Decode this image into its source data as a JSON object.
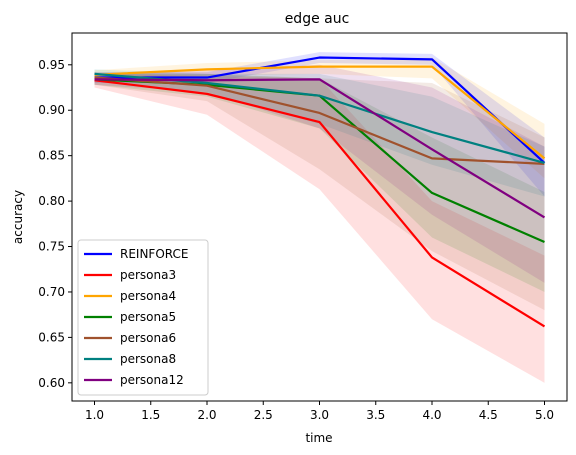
{
  "chart_data": {
    "type": "line",
    "title": "edge auc",
    "xlabel": "time",
    "ylabel": "accuracy",
    "xlim": [
      0.8,
      5.2
    ],
    "ylim": [
      0.58,
      0.985
    ],
    "x_ticks": [
      1.0,
      1.5,
      2.0,
      2.5,
      3.0,
      3.5,
      4.0,
      4.5,
      5.0
    ],
    "y_ticks": [
      0.6,
      0.65,
      0.7,
      0.75,
      0.8,
      0.85,
      0.9,
      0.95
    ],
    "x_tick_labels": [
      "1.0",
      "1.5",
      "2.0",
      "2.5",
      "3.0",
      "3.5",
      "4.0",
      "4.5",
      "5.0"
    ],
    "y_tick_labels": [
      "0.60",
      "0.65",
      "0.70",
      "0.75",
      "0.80",
      "0.85",
      "0.90",
      "0.95"
    ],
    "grid": false,
    "legend_position": "lower-left",
    "x": [
      1,
      2,
      3,
      4,
      5
    ],
    "series": [
      {
        "name": "REINFORCE",
        "color": "#0000ff",
        "values": [
          0.936,
          0.936,
          0.958,
          0.956,
          0.842
        ],
        "lower": [
          0.93,
          0.93,
          0.952,
          0.95,
          0.805
        ],
        "upper": [
          0.942,
          0.942,
          0.964,
          0.962,
          0.87
        ]
      },
      {
        "name": "persona3",
        "color": "#ff0000",
        "values": [
          0.933,
          0.918,
          0.887,
          0.738,
          0.662
        ],
        "lower": [
          0.925,
          0.895,
          0.813,
          0.67,
          0.6
        ],
        "upper": [
          0.94,
          0.938,
          0.935,
          0.8,
          0.74
        ]
      },
      {
        "name": "persona4",
        "color": "#ffa500",
        "values": [
          0.939,
          0.945,
          0.948,
          0.948,
          0.847
        ],
        "lower": [
          0.933,
          0.938,
          0.94,
          0.935,
          0.825
        ],
        "upper": [
          0.944,
          0.952,
          0.955,
          0.958,
          0.885
        ]
      },
      {
        "name": "persona5",
        "color": "#008000",
        "values": [
          0.934,
          0.928,
          0.916,
          0.809,
          0.755
        ],
        "lower": [
          0.928,
          0.915,
          0.88,
          0.76,
          0.7
        ],
        "upper": [
          0.94,
          0.94,
          0.935,
          0.87,
          0.81
        ]
      },
      {
        "name": "persona6",
        "color": "#a0522d",
        "values": [
          0.936,
          0.927,
          0.897,
          0.847,
          0.841
        ],
        "lower": [
          0.928,
          0.91,
          0.835,
          0.745,
          0.68
        ],
        "upper": [
          0.942,
          0.94,
          0.935,
          0.93,
          0.87
        ]
      },
      {
        "name": "persona8",
        "color": "#008080",
        "values": [
          0.94,
          0.93,
          0.916,
          0.876,
          0.842
        ],
        "lower": [
          0.935,
          0.918,
          0.885,
          0.84,
          0.805
        ],
        "upper": [
          0.945,
          0.94,
          0.94,
          0.915,
          0.86
        ]
      },
      {
        "name": "persona12",
        "color": "#800080",
        "values": [
          0.934,
          0.933,
          0.934,
          0.857,
          0.782
        ],
        "lower": [
          0.928,
          0.92,
          0.88,
          0.785,
          0.71
        ],
        "upper": [
          0.94,
          0.945,
          0.95,
          0.925,
          0.86
        ]
      }
    ]
  }
}
